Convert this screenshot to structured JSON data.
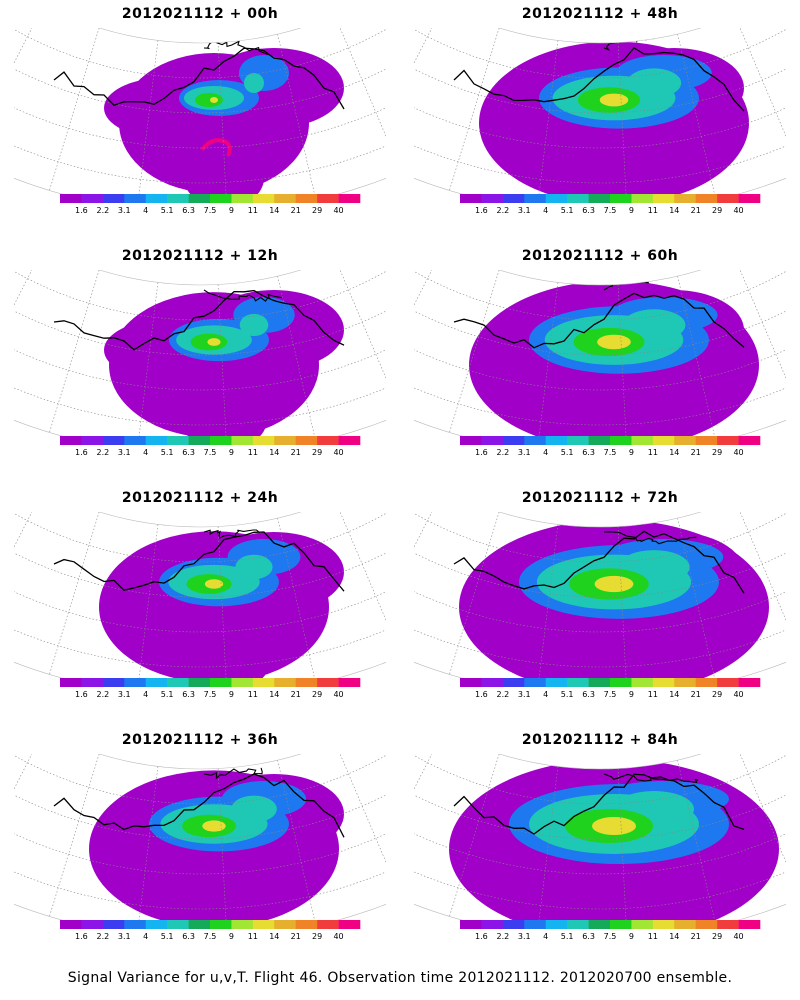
{
  "chart_data": {
    "type": "heatmap",
    "panels": [
      {
        "title": "2012021112 + 00h",
        "lead_hours": 0
      },
      {
        "title": "2012021112 + 48h",
        "lead_hours": 48
      },
      {
        "title": "2012021112 + 12h",
        "lead_hours": 12
      },
      {
        "title": "2012021112 + 60h",
        "lead_hours": 60
      },
      {
        "title": "2012021112 + 24h",
        "lead_hours": 24
      },
      {
        "title": "2012021112 + 72h",
        "lead_hours": 72
      },
      {
        "title": "2012021112 + 36h",
        "lead_hours": 36
      },
      {
        "title": "2012021112 + 84h",
        "lead_hours": 84
      }
    ],
    "colorbar": {
      "labels": [
        "1.6",
        "2.2",
        "3.1",
        "4",
        "5.1",
        "6.3",
        "7.5",
        "9",
        "11",
        "14",
        "21",
        "29",
        "40"
      ],
      "colors": [
        "#a000c8",
        "#8c14e6",
        "#3c3cf0",
        "#1e78f0",
        "#14b4f0",
        "#1ec8b4",
        "#14aa5a",
        "#1ed21e",
        "#a0e632",
        "#e6dc32",
        "#e6af2d",
        "#f08228",
        "#f03c3c",
        "#f00082"
      ]
    },
    "caption": "Signal Variance for u,v,T. Flight 46. Observation time 2012021112. 2012020700 ensemble."
  }
}
